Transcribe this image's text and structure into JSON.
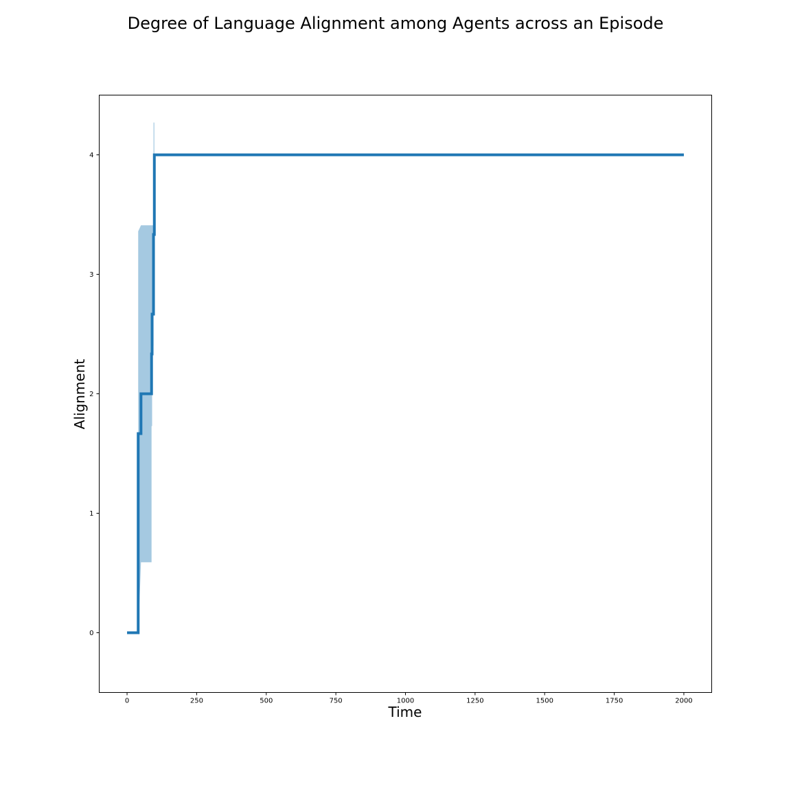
{
  "chart_data": {
    "type": "line",
    "title": "Degree of Language Alignment among Agents across an Episode",
    "xlabel": "Time",
    "ylabel": "Alignment",
    "xlim": [
      -100,
      2100
    ],
    "ylim": [
      -0.5,
      4.5
    ],
    "xticks": [
      0,
      250,
      500,
      750,
      1000,
      1250,
      1500,
      1750,
      2000
    ],
    "yticks": [
      0,
      1,
      2,
      3,
      4
    ],
    "grid": false,
    "series": [
      {
        "color": "#1f77b4",
        "x": [
          0,
          40,
          40,
          50,
          50,
          88,
          88,
          90,
          90,
          95,
          95,
          98,
          98,
          2000
        ],
        "y": [
          0,
          0,
          1.667,
          1.667,
          2,
          2,
          2.333,
          2.333,
          2.667,
          2.667,
          3.333,
          3.333,
          4,
          4
        ]
      }
    ],
    "confidence_band": {
      "color": "#1f77b4",
      "opacity": 0.4,
      "x": [
        40,
        40,
        50,
        50,
        88,
        88,
        90,
        90,
        95,
        95,
        98,
        98
      ],
      "lower": [
        -0.03,
        -0.03,
        0.59,
        0.59,
        0.59,
        1.73,
        1.73,
        2.4,
        2.4,
        3.6,
        3.6,
        4.0
      ],
      "upper": [
        3.36,
        3.36,
        3.41,
        3.41,
        3.41,
        3.41,
        3.41,
        3.41,
        3.41,
        4.27,
        4.27,
        4.0
      ]
    }
  }
}
